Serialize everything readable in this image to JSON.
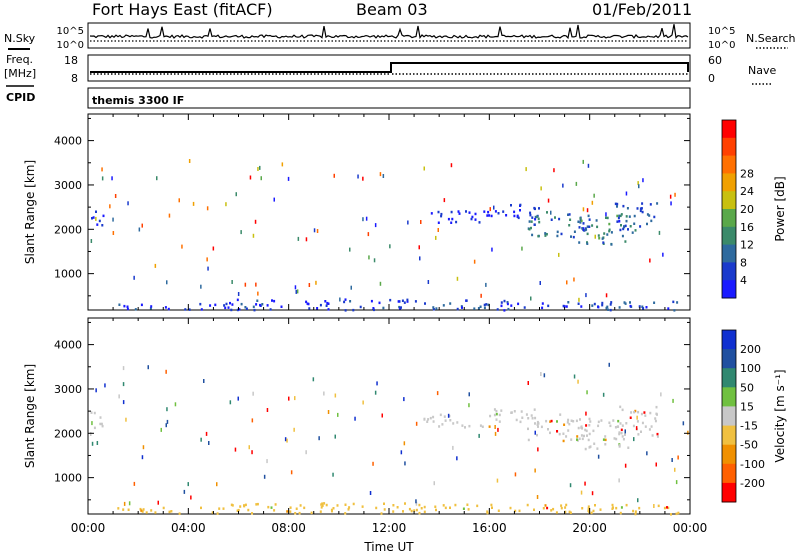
{
  "header": {
    "station": "Fort Hays East (fitACF)",
    "beam": "Beam 03",
    "date": "01/Feb/2011"
  },
  "summary_panels": {
    "nsky_label": "N.Sky",
    "nsky_ticks": [
      "10^5",
      "10^0"
    ],
    "nsearch_label": "N.Search",
    "nsearch_ticks": [
      "10^5",
      "10^0"
    ],
    "freq_label": "Freq.",
    "freq_unit": "[MHz]",
    "freq_ticks": [
      "18",
      "8"
    ],
    "nave_label": "Nave",
    "nave_ticks": [
      "60",
      "0"
    ],
    "cpid_label": "CPID",
    "cpid_text": "themis 3300 IF"
  },
  "chart_data": [
    {
      "type": "heatmap",
      "name": "power",
      "ylabel": "Slant Range [km]",
      "xlabel": "",
      "yticks": [
        1000,
        2000,
        3000,
        4000
      ],
      "ylim": [
        180,
        4600
      ],
      "xlim": [
        0,
        24
      ],
      "colorbar_label": "Power [dB]",
      "colorbar_ticks": [
        "4",
        "8",
        "12",
        "16",
        "20",
        "24",
        "28"
      ],
      "colors": [
        "#1a1aff",
        "#1a3acc",
        "#2e6a9e",
        "#3b8a6a",
        "#5aa84a",
        "#c8c010",
        "#f0a000",
        "#ff7000",
        "#ff4000",
        "#ff0000"
      ],
      "bands": [
        {
          "t0": 13.3,
          "t1": 16.0,
          "r0": 2150,
          "r1": 2450,
          "level": 0.08
        },
        {
          "t0": 16.0,
          "t1": 18.0,
          "r0": 2250,
          "r1": 2600,
          "level": 0.1
        },
        {
          "t0": 17.5,
          "t1": 20.0,
          "r0": 1850,
          "r1": 2450,
          "level": 0.25
        },
        {
          "t0": 19.5,
          "t1": 21.5,
          "r0": 1650,
          "r1": 2350,
          "level": 0.3
        },
        {
          "t0": 21.0,
          "t1": 22.7,
          "r0": 1950,
          "r1": 2650,
          "level": 0.2
        },
        {
          "t0": 0.0,
          "t1": 0.6,
          "r0": 2100,
          "r1": 2500,
          "level": 0.1
        },
        {
          "t0": 5.5,
          "t1": 13.0,
          "r0": 200,
          "r1": 450,
          "level": 0.12
        },
        {
          "t0": 1.0,
          "t1": 5.5,
          "r0": 200,
          "r1": 350,
          "level": 0.1
        },
        {
          "t0": 13.0,
          "t1": 23.5,
          "r0": 200,
          "r1": 420,
          "level": 0.15
        }
      ]
    },
    {
      "type": "heatmap",
      "name": "velocity",
      "ylabel": "Slant Range [km]",
      "xlabel": "Time UT",
      "yticks": [
        1000,
        2000,
        3000,
        4000
      ],
      "ylim": [
        180,
        4600
      ],
      "xlim": [
        0,
        24
      ],
      "xticks": [
        "00:00",
        "04:00",
        "08:00",
        "12:00",
        "16:00",
        "20:00",
        "00:00"
      ],
      "colorbar_label": "Velocity [m s⁻¹]",
      "colorbar_ticks": [
        "200",
        "100",
        "50",
        "15",
        "-15",
        "-50",
        "-100",
        "-200"
      ],
      "colors": [
        "#1030d0",
        "#2050a0",
        "#308870",
        "#70c040",
        "#c8c8c8",
        "#f0c040",
        "#f09000",
        "#ff6000",
        "#ff0000"
      ],
      "bands": [
        {
          "t0": 13.3,
          "t1": 16.0,
          "r0": 2150,
          "r1": 2450,
          "color": "#c8c8c8"
        },
        {
          "t0": 16.0,
          "t1": 18.0,
          "r0": 2250,
          "r1": 2600,
          "color": "#c8c8c8"
        },
        {
          "t0": 17.5,
          "t1": 20.0,
          "r0": 1850,
          "r1": 2450,
          "color": "#c8c8c8"
        },
        {
          "t0": 19.5,
          "t1": 21.5,
          "r0": 1650,
          "r1": 2350,
          "color": "#c8c8c8"
        },
        {
          "t0": 21.0,
          "t1": 22.7,
          "r0": 1950,
          "r1": 2650,
          "color": "#c8c8c8"
        },
        {
          "t0": 0.0,
          "t1": 0.6,
          "r0": 2100,
          "r1": 2500,
          "color": "#c8c8c8"
        },
        {
          "t0": 5.5,
          "t1": 13.0,
          "r0": 200,
          "r1": 450,
          "color": "#f0c040"
        },
        {
          "t0": 1.0,
          "t1": 5.5,
          "r0": 200,
          "r1": 350,
          "color": "#f0c040"
        },
        {
          "t0": 13.0,
          "t1": 23.5,
          "r0": 200,
          "r1": 420,
          "color": "#f0c040"
        }
      ]
    }
  ]
}
